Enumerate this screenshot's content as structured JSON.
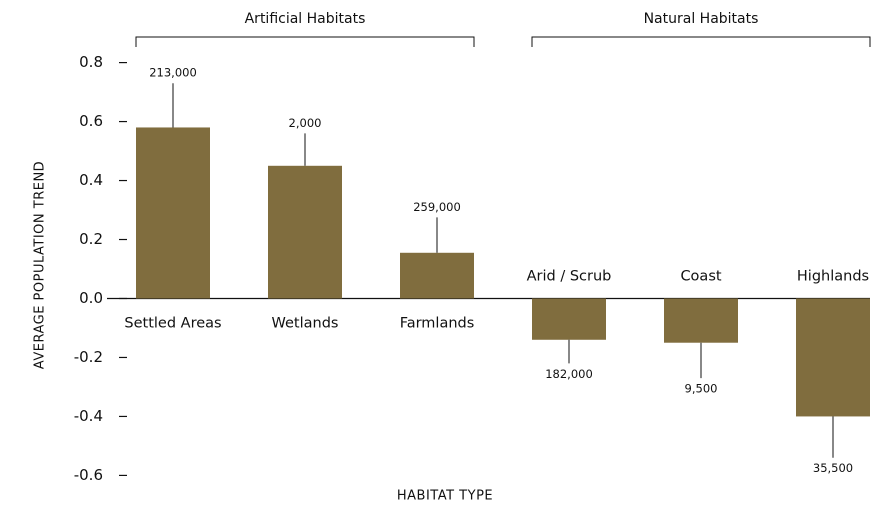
{
  "chart_data": {
    "type": "bar",
    "y_label": "AVERAGE POPULATION TREND",
    "x_label": "HABITAT TYPE",
    "categories": [
      "Settled Areas",
      "Wetlands",
      "Farmlands",
      "Arid / Scrub",
      "Coast",
      "Highlands"
    ],
    "values": [
      0.58,
      0.45,
      0.155,
      -0.14,
      -0.15,
      -0.4
    ],
    "errors": [
      0.15,
      0.11,
      0.12,
      0.08,
      0.12,
      0.14
    ],
    "n_labels": [
      "213,000",
      "2,000",
      "259,000",
      "182,000",
      "9,500",
      "35,500"
    ],
    "color": "#806d3e",
    "groups": [
      {
        "name": "Artificial Habitats",
        "categories": [
          "Settled Areas",
          "Wetlands",
          "Farmlands"
        ]
      },
      {
        "name": "Natural Habitats",
        "categories": [
          "Arid / Scrub",
          "Coast",
          "Highlands"
        ]
      }
    ],
    "ylim": [
      -0.68,
      0.88
    ],
    "yticks": [
      {
        "value": 0.8,
        "label": "0.8"
      },
      {
        "value": 0.6,
        "label": "0.6"
      },
      {
        "value": 0.4,
        "label": "0.4"
      },
      {
        "value": 0.2,
        "label": "0.2"
      },
      {
        "value": 0,
        "label": "0.0"
      },
      {
        "value": -0.2,
        "label": "-0.2"
      },
      {
        "value": -0.4,
        "label": "-0.4"
      },
      {
        "value": -0.6,
        "label": "-0.6"
      }
    ]
  }
}
